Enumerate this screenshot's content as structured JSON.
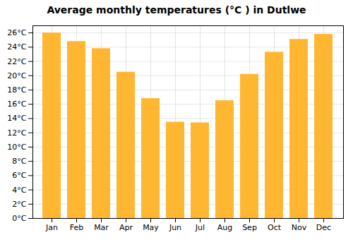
{
  "chart_data": {
    "type": "bar",
    "title": "Average monthly temperatures (°C ) in Dutlwe",
    "categories": [
      "Jan",
      "Feb",
      "Mar",
      "Apr",
      "May",
      "Jun",
      "Jul",
      "Aug",
      "Sep",
      "Oct",
      "Nov",
      "Dec"
    ],
    "values": [
      26.0,
      24.8,
      23.8,
      20.5,
      16.8,
      13.5,
      13.4,
      16.5,
      20.2,
      23.3,
      25.1,
      25.8
    ],
    "color": "#FFB732",
    "ylim": [
      0,
      27
    ],
    "yticks": [
      {
        "value": 0,
        "label": "0°C"
      },
      {
        "value": 2,
        "label": "2°C"
      },
      {
        "value": 4,
        "label": "4°C"
      },
      {
        "value": 6,
        "label": "6°C"
      },
      {
        "value": 8,
        "label": "8°C"
      },
      {
        "value": 10,
        "label": "10°C"
      },
      {
        "value": 12,
        "label": "12°C"
      },
      {
        "value": 14,
        "label": "14°C"
      },
      {
        "value": 16,
        "label": "16°C"
      },
      {
        "value": 18,
        "label": "18°C"
      },
      {
        "value": 20,
        "label": "20°C"
      },
      {
        "value": 22,
        "label": "22°C"
      },
      {
        "value": 24,
        "label": "24°C"
      },
      {
        "value": 26,
        "label": "26°C"
      }
    ],
    "grid": true
  }
}
